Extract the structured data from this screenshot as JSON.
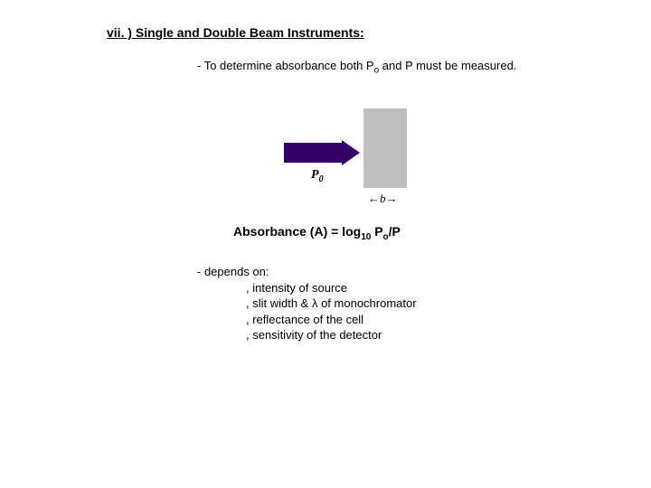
{
  "title": "vii. ) Single and Double Beam Instruments:",
  "subtitle_prefix": "- To determine absorbance both P",
  "subtitle_sub": "o",
  "subtitle_suffix": " and P must be measured.",
  "diagram": {
    "p0_label_main": "P",
    "p0_label_sub": "0",
    "b_label": "←b→",
    "arrow_color": "#330066",
    "sample_box_color": "#c0c0c0"
  },
  "formula": {
    "part1": "Absorbance (A) = log",
    "sub1": "10",
    "part2": " P",
    "sub2": "o",
    "part3": "/P"
  },
  "depends": {
    "intro": "- depends on:",
    "items": [
      ", intensity of source",
      ", slit width & λ of monochromator",
      ", reflectance of the cell",
      ", sensitivity of the detector"
    ]
  },
  "colors": {
    "text": "#000000",
    "background": "#ffffff"
  }
}
